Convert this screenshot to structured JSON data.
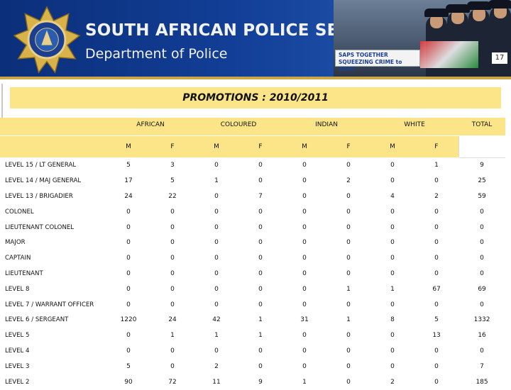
{
  "header": {
    "org_title": "SOUTH AFRICAN POLICE SERVICE",
    "dept_title": "Department of Police",
    "slogan_line1": "SAPS TOGETHER",
    "slogan_line2": "SQUEEZING CRIME to ZERO",
    "page_number": "17",
    "logo": "saps-star-emblem"
  },
  "heading": "PROMOTIONS : 2010/2011",
  "colors": {
    "banner_blue": "#123e96",
    "highlight_yellow": "#fce588",
    "gold": "#c9a646"
  },
  "table": {
    "groups": [
      "AFRICAN",
      "COLOURED",
      "INDIAN",
      "WHITE",
      "TOTAL"
    ],
    "sub_headers": [
      "M",
      "F",
      "M",
      "F",
      "M",
      "F",
      "M",
      "F"
    ],
    "rows": [
      {
        "label": "LEVEL 15 / LT GENERAL",
        "values": [
          "5",
          "3",
          "0",
          "0",
          "0",
          "0",
          "0",
          "1",
          "9"
        ]
      },
      {
        "label": "LEVEL 14 / MAJ GENERAL",
        "values": [
          "17",
          "5",
          "1",
          "0",
          "0",
          "2",
          "0",
          "0",
          "25"
        ]
      },
      {
        "label": "LEVEL 13 / BRIGADIER",
        "values": [
          "24",
          "22",
          "0",
          "7",
          "0",
          "0",
          "4",
          "2",
          "59"
        ]
      },
      {
        "label": "COLONEL",
        "values": [
          "0",
          "0",
          "0",
          "0",
          "0",
          "0",
          "0",
          "0",
          "0"
        ]
      },
      {
        "label": "LIEUTENANT COLONEL",
        "values": [
          "0",
          "0",
          "0",
          "0",
          "0",
          "0",
          "0",
          "0",
          "0"
        ]
      },
      {
        "label": "MAJOR",
        "values": [
          "0",
          "0",
          "0",
          "0",
          "0",
          "0",
          "0",
          "0",
          "0"
        ]
      },
      {
        "label": "CAPTAIN",
        "values": [
          "0",
          "0",
          "0",
          "0",
          "0",
          "0",
          "0",
          "0",
          "0"
        ]
      },
      {
        "label": "LIEUTENANT",
        "values": [
          "0",
          "0",
          "0",
          "0",
          "0",
          "0",
          "0",
          "0",
          "0"
        ]
      },
      {
        "label": "LEVEL 8",
        "values": [
          "0",
          "0",
          "0",
          "0",
          "0",
          "1",
          "1",
          "67",
          "69"
        ]
      },
      {
        "label": "LEVEL 7 / WARRANT OFFICER",
        "values": [
          "0",
          "0",
          "0",
          "0",
          "0",
          "0",
          "0",
          "0",
          "0"
        ]
      },
      {
        "label": "LEVEL 6 / SERGEANT",
        "values": [
          "1220",
          "24",
          "42",
          "1",
          "31",
          "1",
          "8",
          "5",
          "1332"
        ]
      },
      {
        "label": "LEVEL 5",
        "values": [
          "0",
          "1",
          "1",
          "1",
          "0",
          "0",
          "0",
          "13",
          "16"
        ]
      },
      {
        "label": "LEVEL 4",
        "values": [
          "0",
          "0",
          "0",
          "0",
          "0",
          "0",
          "0",
          "0",
          "0"
        ]
      },
      {
        "label": "LEVEL 3",
        "values": [
          "5",
          "0",
          "2",
          "0",
          "0",
          "0",
          "0",
          "0",
          "7"
        ]
      },
      {
        "label": "LEVEL 2",
        "values": [
          "90",
          "72",
          "11",
          "9",
          "1",
          "0",
          "2",
          "0",
          "185"
        ]
      }
    ]
  }
}
